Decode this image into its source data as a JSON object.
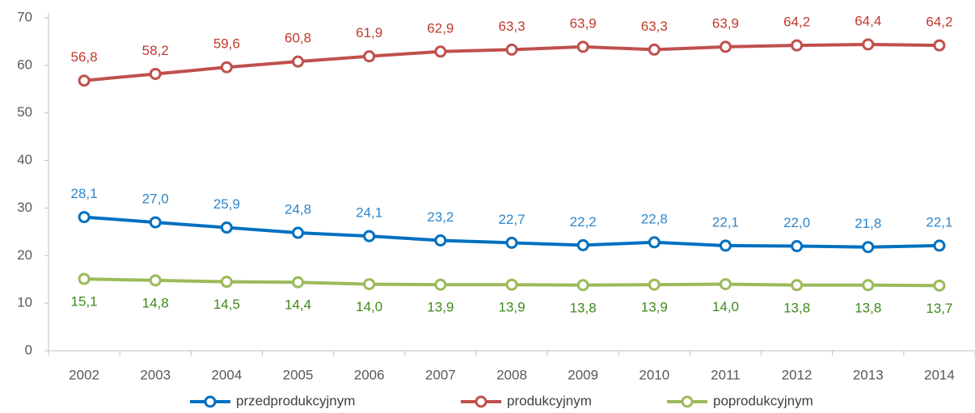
{
  "chart_data": {
    "type": "line",
    "categories": [
      "2002",
      "2003",
      "2004",
      "2005",
      "2006",
      "2007",
      "2008",
      "2009",
      "2010",
      "2011",
      "2012",
      "2013",
      "2014"
    ],
    "series": [
      {
        "name": "przedprodukcyjnym",
        "color": "#0070c0",
        "label_color": "#2e86c8",
        "label_position": "above",
        "values": [
          28.1,
          27.0,
          25.9,
          24.8,
          24.1,
          23.2,
          22.7,
          22.2,
          22.8,
          22.1,
          22.0,
          21.8,
          22.1
        ],
        "value_labels": [
          "28,1",
          "27,0",
          "25,9",
          "24,8",
          "24,1",
          "23,2",
          "22,7",
          "22,2",
          "22,8",
          "22,1",
          "22,0",
          "21,8",
          "22,1"
        ]
      },
      {
        "name": "produkcyjnym",
        "color": "#c0504d",
        "label_color": "#c0392b",
        "label_position": "above",
        "values": [
          56.8,
          58.2,
          59.6,
          60.8,
          61.9,
          62.9,
          63.3,
          63.9,
          63.3,
          63.9,
          64.2,
          64.4,
          64.2
        ],
        "value_labels": [
          "56,8",
          "58,2",
          "59,6",
          "60,8",
          "61,9",
          "62,9",
          "63,3",
          "63,9",
          "63,3",
          "63,9",
          "64,2",
          "64,4",
          "64,2"
        ]
      },
      {
        "name": "poprodukcyjnym",
        "color": "#9bbb59",
        "label_color": "#3f8a1a",
        "label_position": "below",
        "values": [
          15.1,
          14.8,
          14.5,
          14.4,
          14.0,
          13.9,
          13.9,
          13.8,
          13.9,
          14.0,
          13.8,
          13.8,
          13.7
        ],
        "value_labels": [
          "15,1",
          "14,8",
          "14,5",
          "14,4",
          "14,0",
          "13,9",
          "13,9",
          "13,8",
          "13,9",
          "14,0",
          "13,8",
          "13,8",
          "13,7"
        ]
      }
    ],
    "ylim": [
      0,
      70
    ],
    "yticks": [
      0,
      10,
      20,
      30,
      40,
      50,
      60,
      70
    ],
    "grid": false,
    "legend": "bottom"
  }
}
